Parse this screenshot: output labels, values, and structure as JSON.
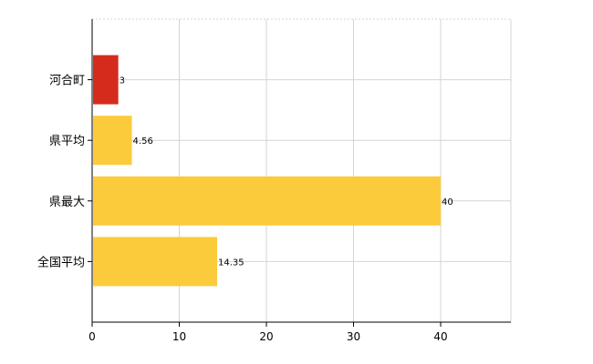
{
  "chart_data": {
    "type": "bar",
    "orientation": "horizontal",
    "categories": [
      "河合町",
      "県平均",
      "県最大",
      "全国平均"
    ],
    "values": [
      3,
      4.56,
      40,
      14.35
    ],
    "value_labels": [
      "3",
      "4.56",
      "40",
      "14.35"
    ],
    "bar_colors": [
      "#d42b1d",
      "#fccb3c",
      "#fccb3c",
      "#fccb3c"
    ],
    "x_ticks": [
      "0",
      "10",
      "20",
      "30",
      "40"
    ],
    "xlim": [
      0,
      48
    ],
    "grid": true,
    "legend": "none"
  }
}
